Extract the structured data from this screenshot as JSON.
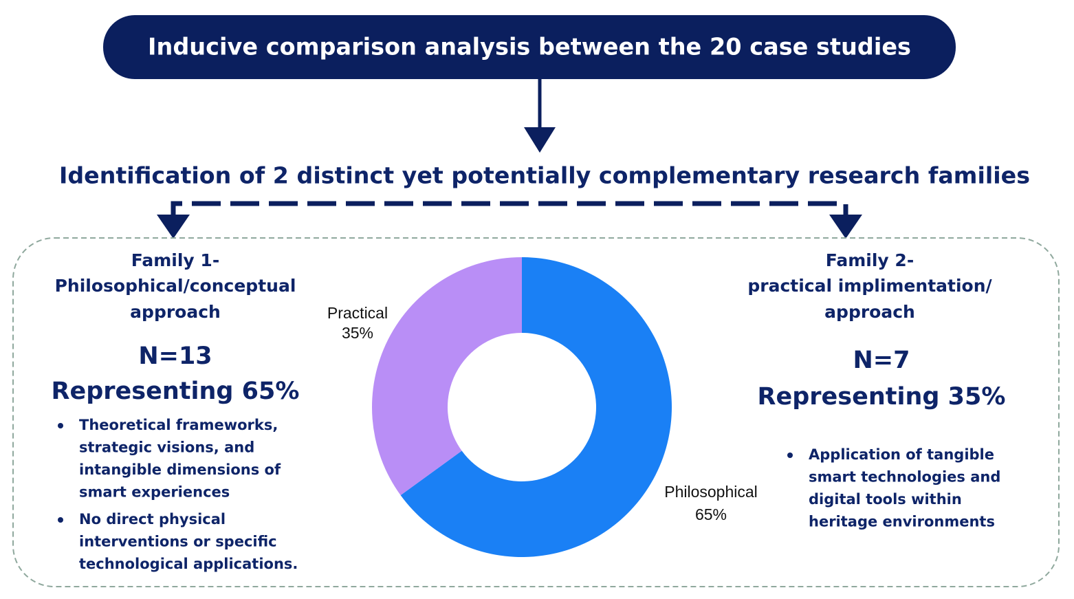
{
  "header": {
    "title": "Inducive comparison analysis between the 20 case studies"
  },
  "subtitle": "Identification of 2 distinct yet potentially complementary research families",
  "families": [
    {
      "title_lines": [
        "Family 1-",
        "Philosophical/conceptual",
        "approach"
      ],
      "count": "N=13",
      "share": "Representing 65%",
      "bullets": [
        [
          "Theoretical frameworks,",
          "strategic visions, and",
          "intangible dimensions of",
          "smart experiences"
        ],
        [
          "No direct physical",
          "interventions or specific",
          "technological applications."
        ]
      ]
    },
    {
      "title_lines": [
        "Family 2-",
        "practical implimentation/",
        "approach"
      ],
      "count": "N=7",
      "share": "Representing 35%",
      "bullets": [
        [
          "Application of tangible",
          "smart technologies and",
          "digital tools within",
          "heritage environments"
        ]
      ]
    }
  ],
  "chart_data": {
    "type": "pie",
    "categories": [
      "Philosophical",
      "Practical"
    ],
    "values": [
      65,
      35
    ],
    "value_labels": [
      "65%",
      "35%"
    ],
    "colors": [
      "#1a80f5",
      "#b98ef6"
    ]
  }
}
